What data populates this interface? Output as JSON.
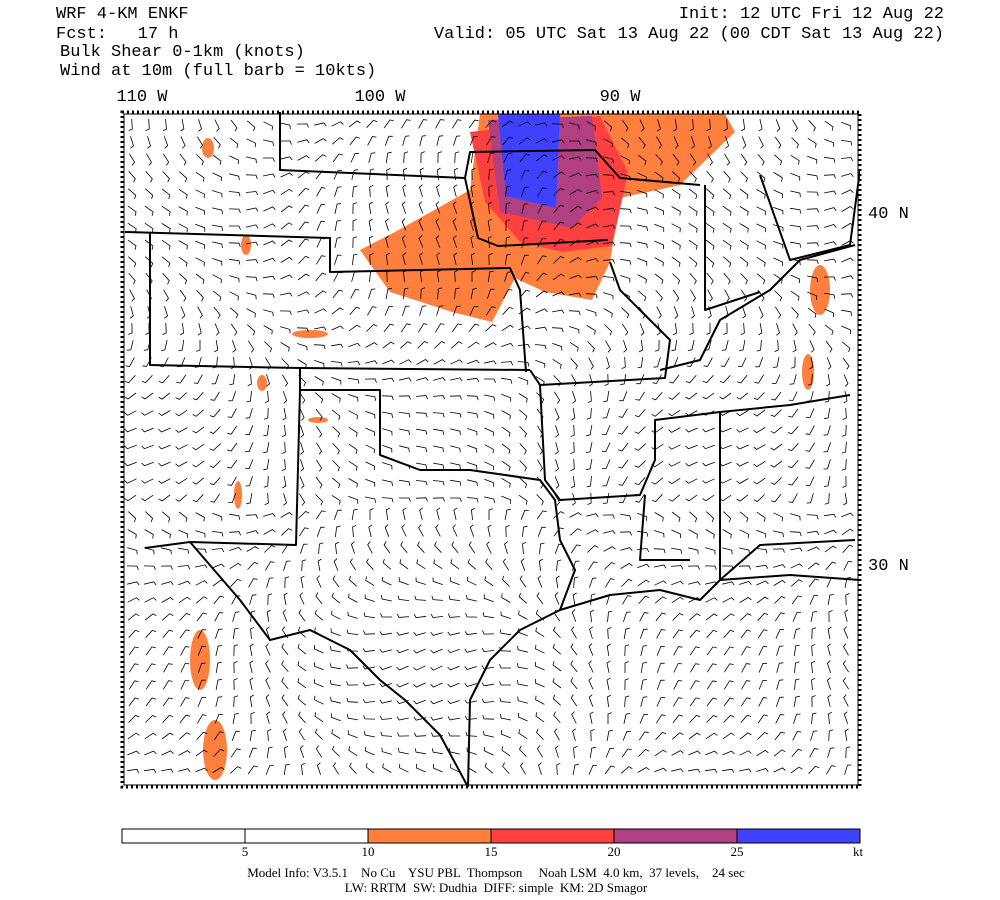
{
  "header": {
    "model": "WRF 4-KM ENKF",
    "forecast": "Fcst:   17 h",
    "field": "Bulk Shear 0-1km (knots)",
    "wind": "Wind at 10m (full barb = 10kts)",
    "init": "Init: 12 UTC Fri 12 Aug 22",
    "valid": "Valid: 05 UTC Sat 13 Aug 22 (00 CDT Sat 13 Aug 22)"
  },
  "map": {
    "longitudes": [
      "110 W",
      "100 W",
      "90 W"
    ],
    "latitudes": [
      "40 N",
      "30 N"
    ]
  },
  "colorbar": {
    "ticks": [
      5,
      10,
      15,
      20,
      25
    ],
    "unit": "kt",
    "colors": [
      "#ffffff",
      "#ffffff",
      "#ff7f3f",
      "#ff4040",
      "#b04080",
      "#4040ff"
    ]
  },
  "footer": {
    "line1": "Model Info: V3.5.1    No Cu    YSU PBL  Thompson     Noah LSM  4.0 km,  37 levels,    24 sec",
    "line2": "LW: RRTM  SW: Dudhia  DIFF: simple  KM: 2D Smagor"
  }
}
